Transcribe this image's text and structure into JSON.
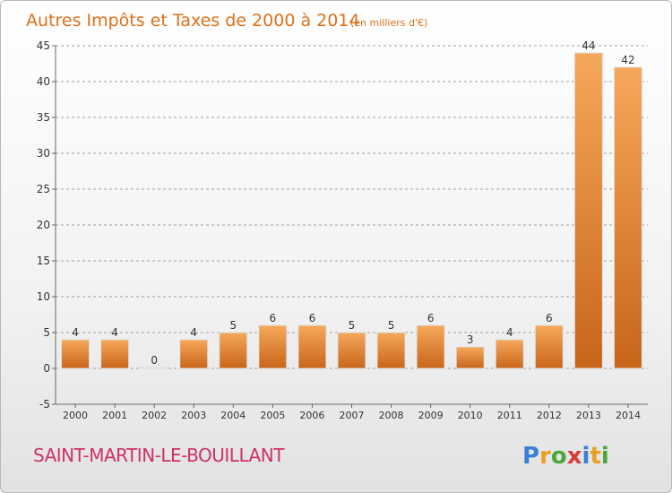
{
  "title": "Autres Impôts et Taxes de 2000 à 2014",
  "unit": "(en milliers d'€)",
  "place": "SAINT-MARTIN-LE-BOUILLANT",
  "brand": {
    "letters": [
      "P",
      "r",
      "o",
      "x",
      "i",
      "t",
      "i"
    ],
    "colors": [
      "#3a7fd5",
      "#e8a020",
      "#4aa83a",
      "#d83a3a",
      "#3a7fd5",
      "#e8a020",
      "#4aa83a"
    ]
  },
  "colors": {
    "bar": "#f0922e",
    "bar_dark": "#c8651a",
    "axis": "#666666",
    "grid": "#999999",
    "title": "#e07018",
    "place": "#d0306a"
  },
  "chart_data": {
    "type": "bar",
    "categories": [
      "2000",
      "2001",
      "2002",
      "2003",
      "2004",
      "2005",
      "2006",
      "2007",
      "2008",
      "2009",
      "2010",
      "2011",
      "2012",
      "2013",
      "2014"
    ],
    "values": [
      4,
      4,
      0,
      4,
      5,
      6,
      6,
      5,
      5,
      6,
      3,
      4,
      6,
      44,
      42
    ],
    "ylim": [
      -5,
      45
    ],
    "yticks": [
      -5,
      0,
      5,
      10,
      15,
      20,
      25,
      30,
      35,
      40,
      45
    ],
    "grid": "horizontal dashed"
  }
}
